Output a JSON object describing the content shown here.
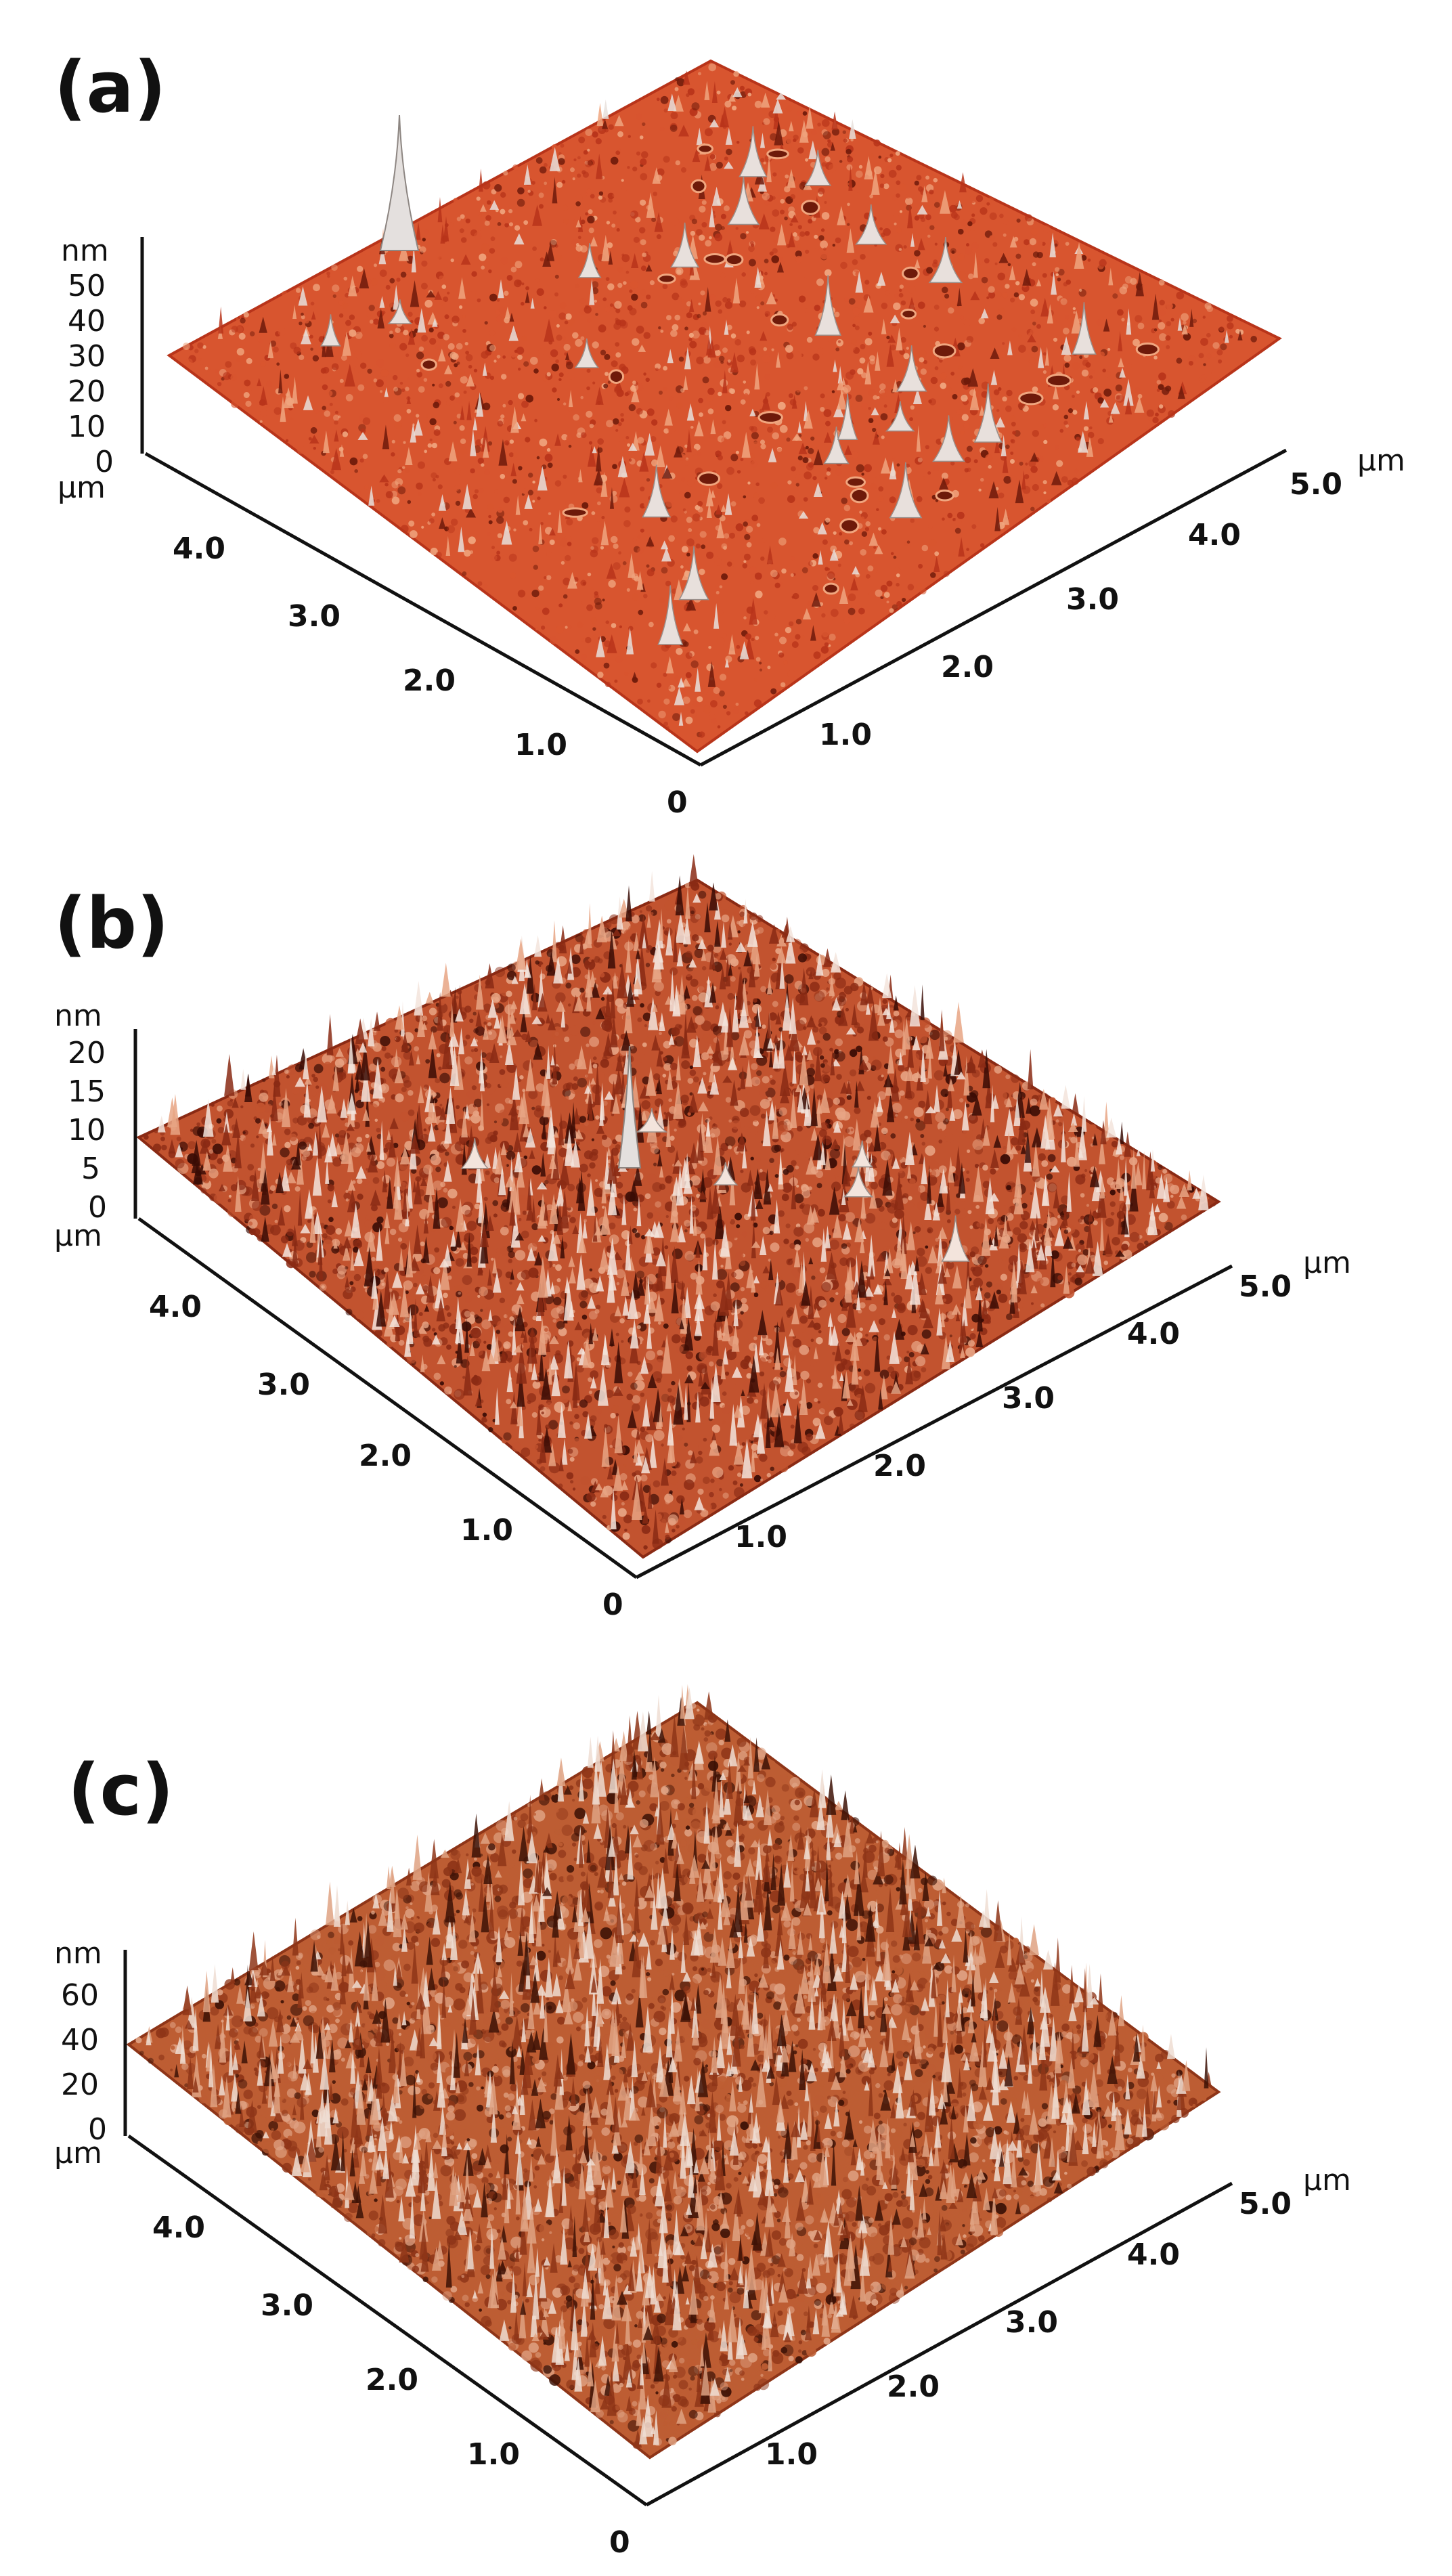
{
  "panels": [
    {
      "label": "(a)",
      "z_unit": "nm",
      "z_ticks": [
        "50",
        "40",
        "30",
        "20",
        "10",
        "0"
      ],
      "xy_unit": "µm",
      "left_ticks": [
        "4.0",
        "3.0",
        "2.0",
        "1.0"
      ],
      "right_ticks": [
        "1.0",
        "2.0",
        "3.0",
        "4.0",
        "5.0"
      ],
      "origin": "0",
      "surface": {
        "colors": [
          "#6e1a0a",
          "#b8341a",
          "#d8552f",
          "#f0a67f",
          "#e8e0dc"
        ],
        "roughness": 0.25,
        "peaks": 22,
        "pits": 24
      }
    },
    {
      "label": "(b)",
      "z_unit": "nm",
      "z_ticks": [
        "20",
        "15",
        "10",
        "5",
        "0"
      ],
      "xy_unit": "µm",
      "left_ticks": [
        "4.0",
        "3.0",
        "2.0",
        "1.0"
      ],
      "right_ticks": [
        "1.0",
        "2.0",
        "3.0",
        "4.0",
        "5.0"
      ],
      "origin": "0",
      "surface": {
        "colors": [
          "#3a0c05",
          "#8a2a14",
          "#c2532f",
          "#e7a484",
          "#f3e4dc"
        ],
        "roughness": 0.8,
        "peaks": 6,
        "pits": 0
      }
    },
    {
      "label": "(c)",
      "z_unit": "nm",
      "z_ticks": [
        "60",
        "40",
        "20",
        "0"
      ],
      "xy_unit": "µm",
      "left_ticks": [
        "4.0",
        "3.0",
        "2.0",
        "1.0"
      ],
      "right_ticks": [
        "1.0",
        "2.0",
        "3.0",
        "4.0",
        "5.0"
      ],
      "origin": "0",
      "surface": {
        "colors": [
          "#3d1206",
          "#8e3518",
          "#bd5d33",
          "#dfa283",
          "#efddd2"
        ],
        "roughness": 1.0,
        "peaks": 0,
        "pits": 0
      }
    }
  ]
}
